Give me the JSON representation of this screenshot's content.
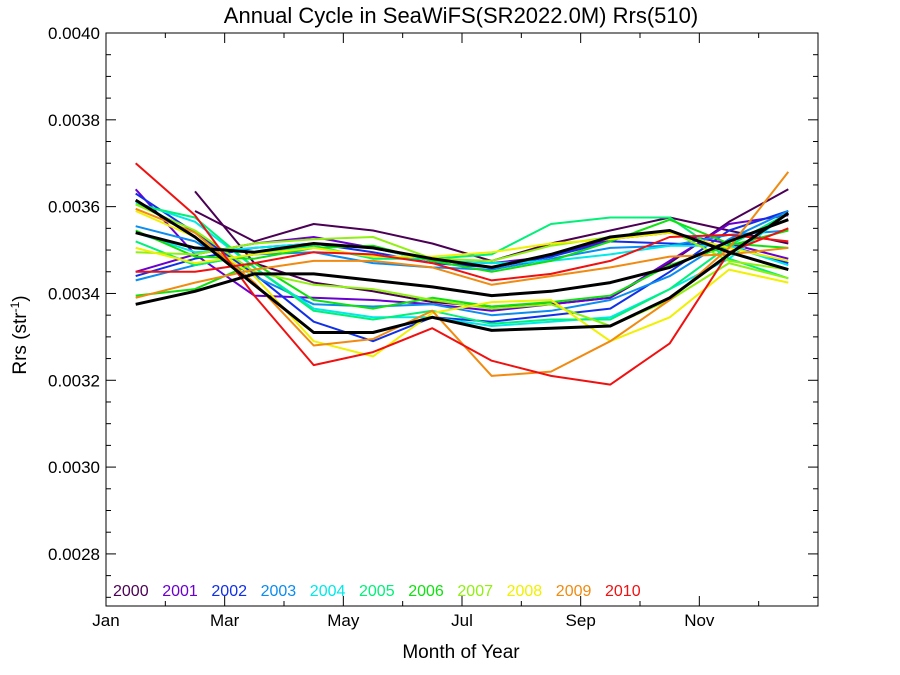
{
  "chart_data": {
    "type": "line",
    "title": "Annual Cycle in SeaWiFS(SR2022.0M) Rrs(510)",
    "xlabel": "Month of Year",
    "ylabel_main": "Rrs (str",
    "ylabel_sup": "-1",
    "ylabel_tail": ")",
    "xlim": [
      0,
      12
    ],
    "ylim": [
      0.00268,
      0.004
    ],
    "x_ticks": [
      {
        "value": 0,
        "label": "Jan"
      },
      {
        "value": 2,
        "label": "Mar"
      },
      {
        "value": 4,
        "label": "May"
      },
      {
        "value": 6,
        "label": "Jul"
      },
      {
        "value": 8,
        "label": "Sep"
      },
      {
        "value": 10,
        "label": "Nov"
      }
    ],
    "y_ticks": [
      {
        "value": 0.0028,
        "label": "0.0028"
      },
      {
        "value": 0.003,
        "label": "0.0030"
      },
      {
        "value": 0.0032,
        "label": "0.0032"
      },
      {
        "value": 0.0034,
        "label": "0.0034"
      },
      {
        "value": 0.0036,
        "label": "0.0036"
      },
      {
        "value": 0.0038,
        "label": "0.0038"
      },
      {
        "value": 0.004,
        "label": "0.0040"
      }
    ],
    "legend_position": "bottom-left",
    "series": [
      {
        "name": "2000",
        "color": "#4b0055",
        "x": [
          0.5,
          1.5,
          2.5,
          3.5,
          4.5,
          5.5,
          6.5,
          7.5,
          8.5,
          9.5,
          10.5,
          11.5
        ],
        "lines": [
          [
            null,
            0.003635,
            0.00347,
            0.003425,
            0.003405,
            0.00338,
            0.00337,
            0.003375,
            0.00339,
            0.00347,
            0.003565,
            0.00364
          ],
          [
            null,
            0.00359,
            0.00352,
            0.00356,
            0.003545,
            0.003515,
            0.003475,
            0.003515,
            0.003545,
            0.003575,
            0.003545,
            0.003515
          ]
        ]
      },
      {
        "name": "2001",
        "color": "#6a00d0",
        "x": [
          0.5,
          1.5,
          2.5,
          3.5,
          4.5,
          5.5,
          6.5,
          7.5,
          8.5,
          9.5,
          10.5,
          11.5
        ],
        "lines": [
          [
            0.00364,
            0.00349,
            0.003395,
            0.00339,
            0.003385,
            0.003375,
            0.00336,
            0.003375,
            0.00339,
            0.003475,
            0.00356,
            0.00358
          ],
          [
            0.00345,
            0.00349,
            0.003515,
            0.00353,
            0.003505,
            0.003475,
            0.00347,
            0.003485,
            0.003525,
            0.00354,
            0.003515,
            0.00348
          ]
        ]
      },
      {
        "name": "2002",
        "color": "#1030e8",
        "x": [
          0.5,
          1.5,
          2.5,
          3.5,
          4.5,
          5.5,
          6.5,
          7.5,
          8.5,
          9.5,
          10.5,
          11.5
        ],
        "lines": [
          [
            0.00363,
            0.00354,
            0.003445,
            0.003335,
            0.00329,
            0.003345,
            0.003335,
            0.00335,
            0.003365,
            0.00345,
            0.003545,
            0.00359
          ],
          [
            0.00344,
            0.00348,
            0.003505,
            0.003515,
            0.003495,
            0.00347,
            0.00346,
            0.003485,
            0.00352,
            0.003515,
            0.00351,
            0.00347
          ]
        ]
      },
      {
        "name": "2003",
        "color": "#0a8cf0",
        "x": [
          0.5,
          1.5,
          2.5,
          3.5,
          4.5,
          5.5,
          6.5,
          7.5,
          8.5,
          9.5,
          10.5,
          11.5
        ],
        "lines": [
          [
            0.003555,
            0.00352,
            0.00344,
            0.003375,
            0.00337,
            0.003375,
            0.00335,
            0.00336,
            0.003385,
            0.00344,
            0.003525,
            0.00359
          ],
          [
            0.00343,
            0.003465,
            0.00349,
            0.003495,
            0.00347,
            0.00346,
            0.003455,
            0.00348,
            0.003505,
            0.00351,
            0.003535,
            0.003545
          ]
        ]
      },
      {
        "name": "2004",
        "color": "#00e8e8",
        "x": [
          0.5,
          1.5,
          2.5,
          3.5,
          4.5,
          5.5,
          6.5,
          7.5,
          8.5,
          9.5,
          10.5,
          11.5
        ],
        "lines": [
          [
            0.00361,
            0.003565,
            0.00346,
            0.003365,
            0.003345,
            0.003345,
            0.003325,
            0.003335,
            0.003345,
            0.00341,
            0.00348,
            0.003585
          ],
          [
            0.00354,
            0.003495,
            0.003505,
            0.003515,
            0.003505,
            0.003475,
            0.00347,
            0.003475,
            0.00349,
            0.00351,
            0.00351,
            0.003465
          ]
        ]
      },
      {
        "name": "2005",
        "color": "#00f078",
        "x": [
          0.5,
          1.5,
          2.5,
          3.5,
          4.5,
          5.5,
          6.5,
          7.5,
          8.5,
          9.5,
          10.5,
          11.5
        ],
        "lines": [
          [
            0.003605,
            0.003575,
            0.00346,
            0.00336,
            0.00334,
            0.00336,
            0.00333,
            0.00334,
            0.00334,
            0.00341,
            0.00351,
            0.003585
          ],
          [
            0.00352,
            0.003465,
            0.00349,
            0.00351,
            0.00348,
            0.00348,
            0.00349,
            0.00356,
            0.003575,
            0.003575,
            0.00348,
            0.003435
          ]
        ]
      },
      {
        "name": "2006",
        "color": "#10e010",
        "x": [
          0.5,
          1.5,
          2.5,
          3.5,
          4.5,
          5.5,
          6.5,
          7.5,
          8.5,
          9.5,
          10.5,
          11.5
        ],
        "lines": [
          [
            0.003395,
            0.00341,
            0.00347,
            0.003385,
            0.003365,
            0.00339,
            0.00337,
            0.00338,
            0.003395,
            0.003465,
            0.00351,
            0.003545
          ],
          [
            0.003545,
            0.003485,
            0.00348,
            0.003505,
            0.00351,
            0.003475,
            0.00345,
            0.003475,
            0.00352,
            0.00357,
            0.003515,
            0.003505
          ]
        ]
      },
      {
        "name": "2007",
        "color": "#90f010",
        "x": [
          0.5,
          1.5,
          2.5,
          3.5,
          4.5,
          5.5,
          6.5,
          7.5,
          8.5,
          9.5,
          10.5,
          11.5
        ],
        "lines": [
          [
            0.003605,
            0.003545,
            0.00345,
            0.00342,
            0.00341,
            0.003385,
            0.003365,
            0.003375,
            0.003325,
            0.003385,
            0.00347,
            0.003435
          ],
          [
            0.003495,
            0.00349,
            0.003515,
            0.003525,
            0.00353,
            0.00348,
            0.003475,
            0.00351,
            0.00353,
            0.003545,
            0.003475,
            0.003455
          ]
        ]
      },
      {
        "name": "2008",
        "color": "#f0f000",
        "x": [
          0.5,
          1.5,
          2.5,
          3.5,
          4.5,
          5.5,
          6.5,
          7.5,
          8.5,
          9.5,
          10.5,
          11.5
        ],
        "lines": [
          [
            0.00359,
            0.00353,
            0.00344,
            0.00329,
            0.003255,
            0.003355,
            0.00338,
            0.003385,
            0.00329,
            0.003345,
            0.003455,
            0.003425
          ],
          [
            0.003505,
            0.00347,
            0.00349,
            0.003505,
            0.003485,
            0.003485,
            0.003495,
            0.003515,
            0.003525,
            0.00354,
            0.003505,
            0.003475
          ]
        ]
      },
      {
        "name": "2009",
        "color": "#f08a10",
        "x": [
          0.5,
          1.5,
          2.5,
          3.5,
          4.5,
          5.5,
          6.5,
          7.5,
          8.5,
          9.5,
          10.5,
          11.5
        ],
        "lines": [
          [
            0.003595,
            0.00354,
            0.003425,
            0.00328,
            0.003295,
            0.00336,
            0.00321,
            0.00322,
            0.00329,
            0.003385,
            0.003505,
            0.00368
          ],
          [
            0.00339,
            0.003425,
            0.003455,
            0.003475,
            0.003475,
            0.00346,
            0.00342,
            0.00344,
            0.00346,
            0.003485,
            0.00349,
            0.003505
          ]
        ]
      },
      {
        "name": "2010",
        "color": "#f01010",
        "x": [
          0.5,
          1.5,
          2.5,
          3.5,
          4.5,
          5.5,
          6.5,
          7.5,
          8.5,
          9.5,
          10.5,
          11.5
        ],
        "lines": [
          [
            0.0037,
            0.00358,
            0.003395,
            0.003235,
            0.003265,
            0.00332,
            0.003245,
            0.00321,
            0.00319,
            0.003285,
            0.003495,
            0.00355
          ],
          [
            0.00345,
            0.00345,
            0.00347,
            0.003495,
            0.00349,
            0.00347,
            0.00343,
            0.003445,
            0.003475,
            0.00353,
            0.003535,
            0.00352
          ]
        ]
      },
      {
        "color": "#000000",
        "width": 3,
        "x": [
          0.5,
          1.5,
          2.5,
          3.5,
          4.5,
          5.5,
          6.5,
          7.5,
          8.5,
          9.5,
          10.5,
          11.5
        ],
        "lines": [
          [
            0.003615,
            0.00353,
            0.00342,
            0.00331,
            0.00331,
            0.003345,
            0.003315,
            0.00332,
            0.003325,
            0.00339,
            0.00349,
            0.003585
          ],
          [
            0.003375,
            0.003405,
            0.003445,
            0.003445,
            0.00343,
            0.003415,
            0.003395,
            0.003405,
            0.003425,
            0.00346,
            0.00352,
            0.00357
          ],
          [
            0.00354,
            0.003505,
            0.003495,
            0.003515,
            0.003505,
            0.00348,
            0.00346,
            0.00349,
            0.00353,
            0.003545,
            0.003495,
            0.003455
          ]
        ]
      }
    ]
  }
}
